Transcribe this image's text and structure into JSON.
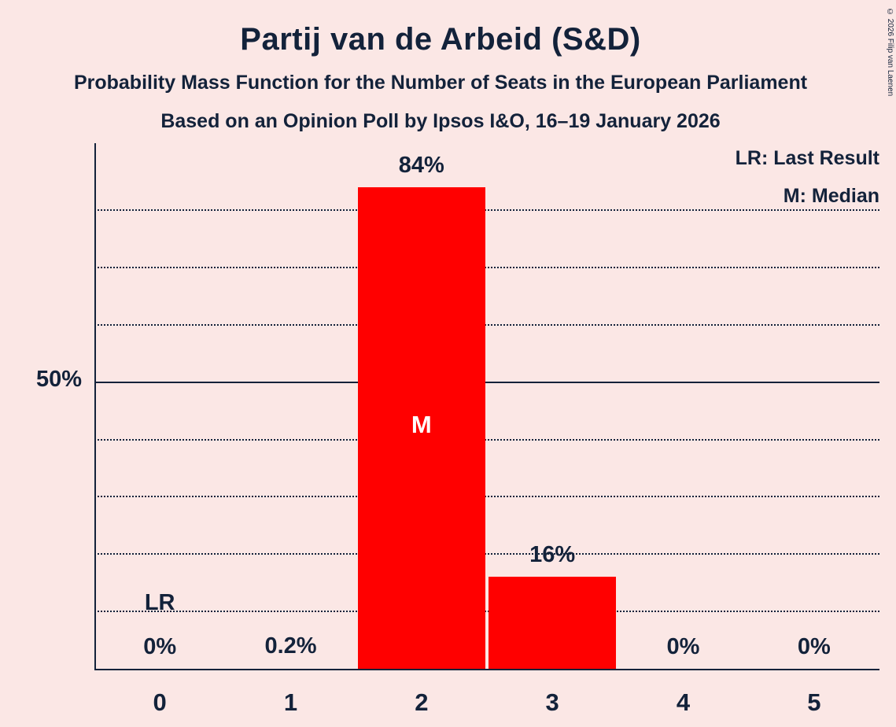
{
  "header": {
    "title": "Partij van de Arbeid (S&D)",
    "subtitle1": "Probability Mass Function for the Number of Seats in the European Parliament",
    "subtitle2": "Based on an Opinion Poll by Ipsos I&O, 16–19 January 2026"
  },
  "copyright": "© 2026 Filip van Laenen",
  "legend": {
    "lr": "LR: Last Result",
    "m": "M: Median"
  },
  "chart_data": {
    "type": "bar",
    "title": "Partij van de Arbeid (S&D)",
    "categories": [
      "0",
      "1",
      "2",
      "3",
      "4",
      "5"
    ],
    "values": [
      0,
      0.2,
      84,
      16,
      0,
      0
    ],
    "value_labels": [
      "0%",
      "0.2%",
      "84%",
      "16%",
      "0%",
      "0%"
    ],
    "xlabel": "",
    "ylabel": "",
    "ylim": [
      0,
      91.7
    ],
    "y_tick_label": "50%",
    "y_tick_value": 50,
    "gridlines_pct": [
      10,
      20,
      30,
      40,
      50,
      60,
      70,
      80
    ],
    "solid_gridline_pct": 50,
    "grid": "horizontal-dotted",
    "legend_position": "top-right",
    "median_category": "2",
    "median_marker": "M",
    "last_result_category": "0",
    "last_result_marker": "LR",
    "bar_color": "#ff0000",
    "background_color": "#fbe7e5",
    "text_color": "#13223a"
  }
}
